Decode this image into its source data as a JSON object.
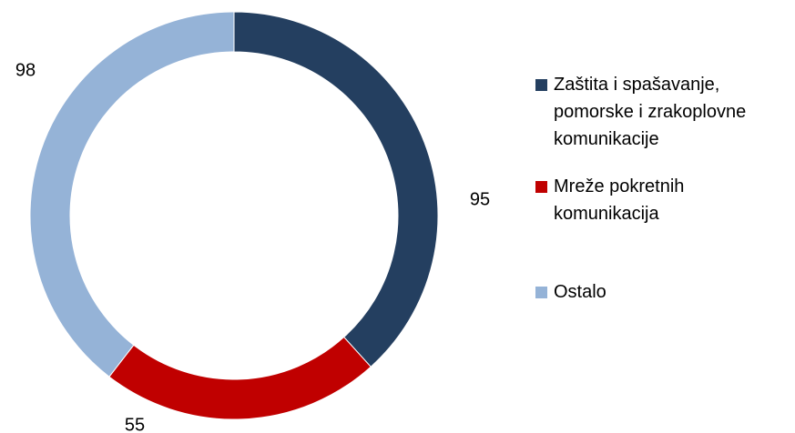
{
  "chart_data": {
    "type": "donut",
    "categories": [
      "Zaštita i spašavanje, pomorske i zrakoplovne komunikacije",
      "Mreže pokretnih komunikacija",
      "Ostalo"
    ],
    "values": [
      95,
      55,
      98
    ],
    "colors": [
      "#243f60",
      "#c00000",
      "#95b3d7"
    ],
    "legend": "right"
  }
}
